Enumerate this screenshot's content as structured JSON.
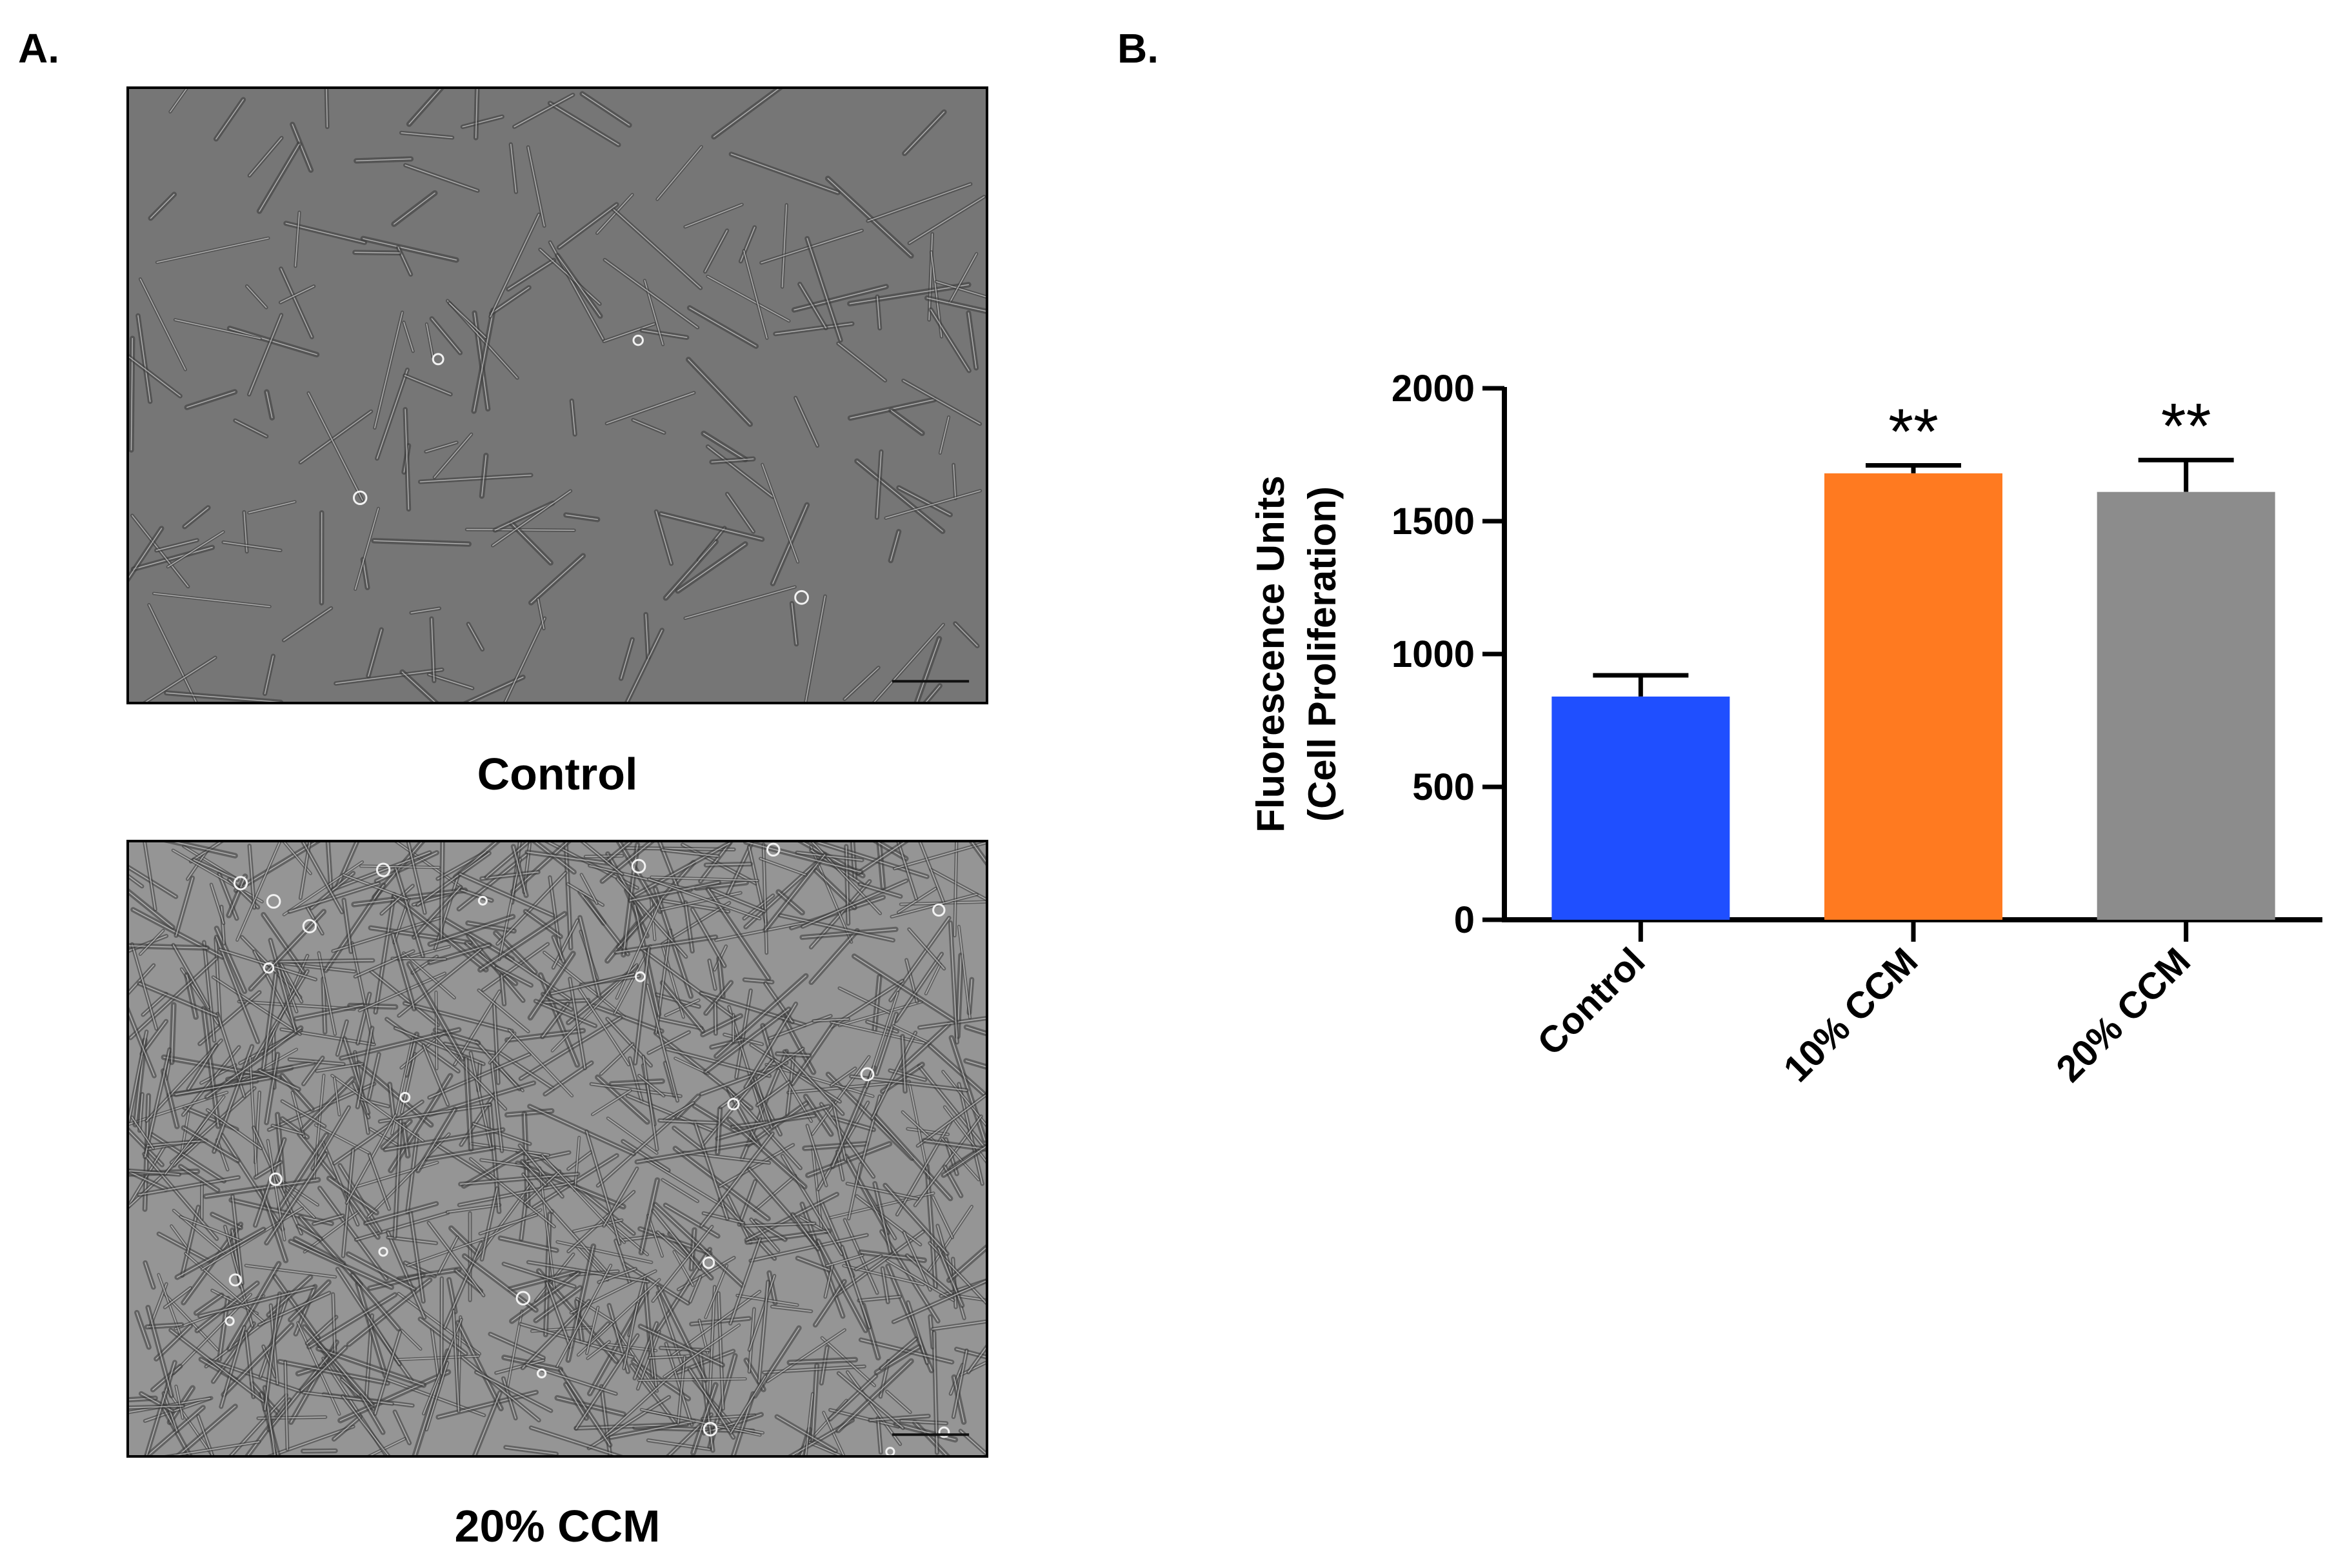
{
  "panel_a": {
    "label": "A.",
    "images": [
      {
        "caption": "Control",
        "tone": "#767676",
        "density": "sparse",
        "scale_bar": "100 µm"
      },
      {
        "caption": "20% CCM",
        "tone": "#959595",
        "density": "dense",
        "scale_bar": "100 µm"
      }
    ]
  },
  "panel_b": {
    "label": "B."
  },
  "chart_data": {
    "type": "bar",
    "title": "",
    "xlabel": "",
    "ylabel": [
      "Fluorescence Units",
      "(Cell Proliferation)"
    ],
    "categories": [
      "Control",
      "10% CCM",
      "20% CCM"
    ],
    "values": [
      840,
      1680,
      1610
    ],
    "errors": [
      80,
      30,
      120
    ],
    "significance": [
      "",
      "**",
      "**"
    ],
    "colors": [
      "#1f4fff",
      "#ff7a20",
      "#8c8c8c"
    ],
    "ylim": [
      0,
      2000
    ],
    "yticks": [
      0,
      500,
      1000,
      1500,
      2000
    ],
    "grid": false,
    "legend": "none"
  }
}
